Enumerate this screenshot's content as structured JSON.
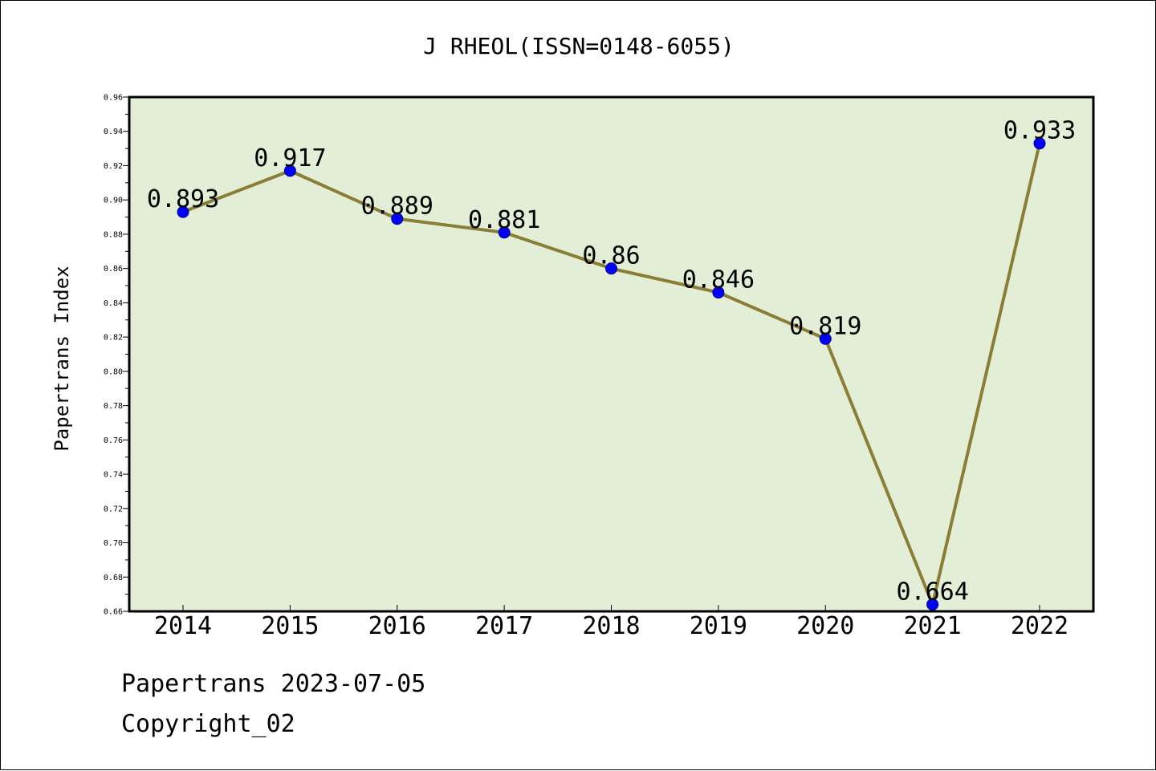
{
  "chart_data": {
    "type": "line",
    "title": "J RHEOL(ISSN=0148-6055)",
    "ylabel": "Papertrans Index",
    "xlabel": "",
    "categories": [
      "2014",
      "2015",
      "2016",
      "2017",
      "2018",
      "2019",
      "2020",
      "2021",
      "2022"
    ],
    "series": [
      {
        "values": [
          0.893,
          0.917,
          0.889,
          0.881,
          0.86,
          0.846,
          0.819,
          0.664,
          0.933
        ],
        "data_labels": [
          "0.893",
          "0.917",
          "0.889",
          "0.881",
          "0.86",
          "0.846",
          "0.819",
          "0.664",
          "0.933"
        ]
      }
    ],
    "ylim": [
      0.66,
      0.96
    ],
    "yticks": [
      "0.66",
      "0.68",
      "0.70",
      "0.72",
      "0.74",
      "0.76",
      "0.78",
      "0.80",
      "0.82",
      "0.84",
      "0.86",
      "0.88",
      "0.90",
      "0.92",
      "0.94",
      "0.96"
    ],
    "grid": false,
    "legend": "none",
    "colors": {
      "plot_background": "#e2efd6",
      "line": "#8b7d35",
      "marker": "#0000ff",
      "marker_edge": "#00008b",
      "axes": "#000000"
    }
  },
  "footer": {
    "line1": "Papertrans 2023-07-05",
    "line2": "Copyright_02"
  }
}
